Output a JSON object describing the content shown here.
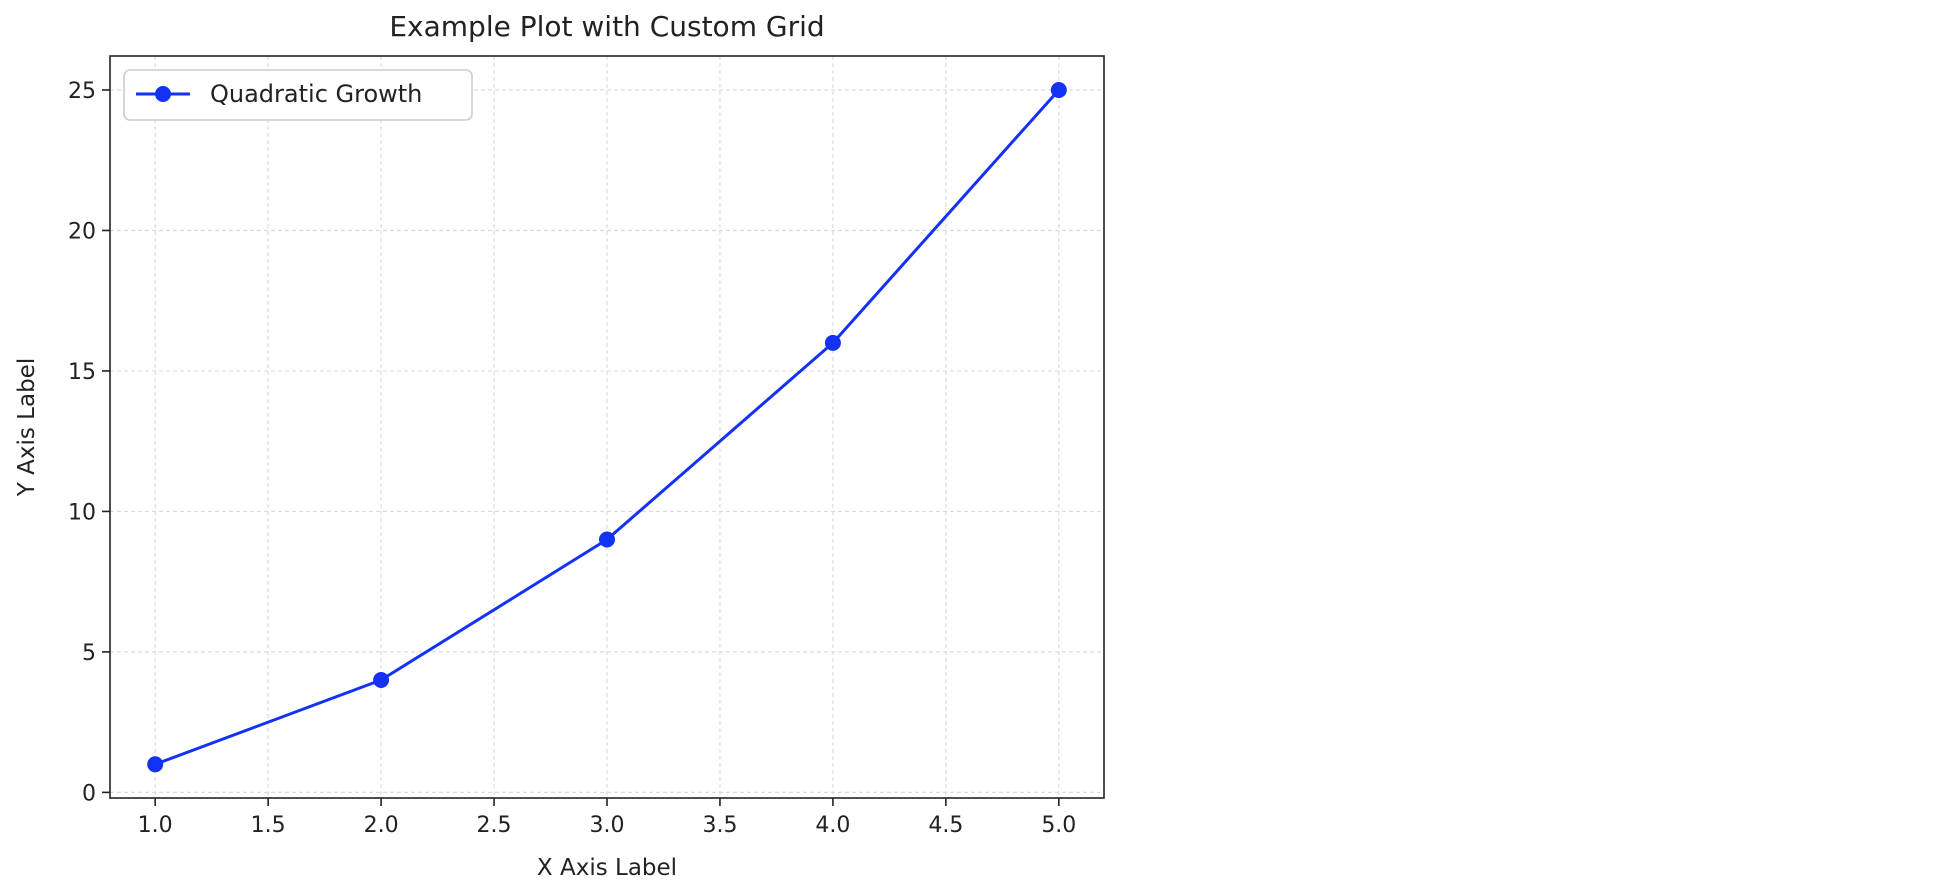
{
  "chart_data": {
    "type": "line",
    "title": "Example Plot with Custom Grid",
    "xlabel": "X Axis Label",
    "ylabel": "Y Axis Label",
    "xlim": [
      0.8,
      5.2
    ],
    "ylim": [
      -0.2,
      25.0
    ],
    "xticks": [
      1.0,
      1.5,
      2.0,
      2.5,
      3.0,
      3.5,
      4.0,
      4.5,
      5.0
    ],
    "xtick_labels": [
      "1.0",
      "1.5",
      "2.0",
      "2.5",
      "3.0",
      "3.5",
      "4.0",
      "4.5",
      "5.0"
    ],
    "yticks": [
      0,
      5,
      10,
      15,
      20,
      25
    ],
    "ytick_labels": [
      "0",
      "5",
      "10",
      "15",
      "20",
      "25"
    ],
    "grid": true,
    "legend_position": "top-left",
    "series": [
      {
        "name": "Quadratic Growth",
        "color": "#1432f5",
        "marker": "circle",
        "x": [
          1,
          2,
          3,
          4,
          5
        ],
        "y": [
          1,
          4,
          9,
          16,
          25
        ]
      }
    ]
  }
}
